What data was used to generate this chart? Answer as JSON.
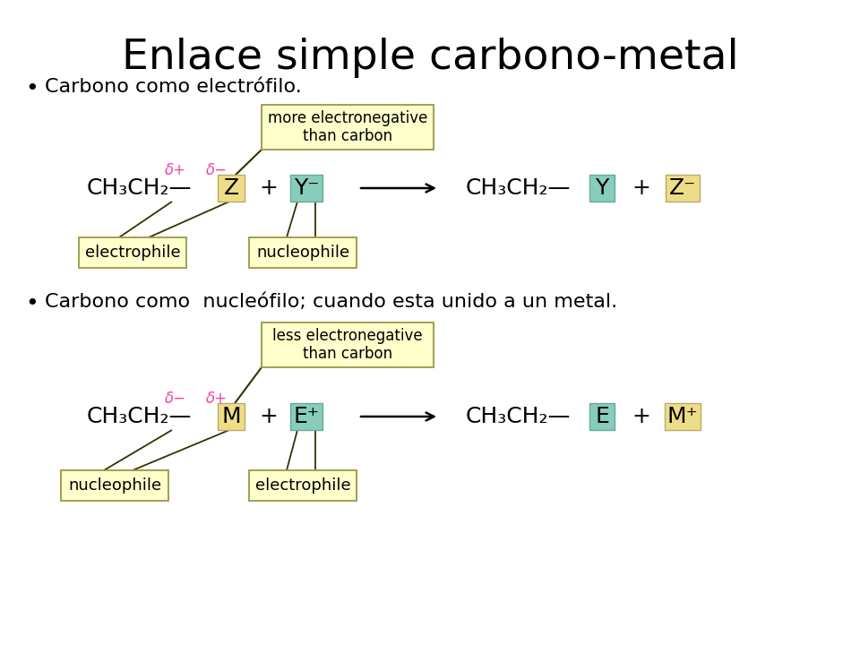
{
  "title": "Enlace simple carbono-metal",
  "title_fontsize": 34,
  "bg_color": "#ffffff",
  "bullet1": "Carbono como electrófilo.",
  "bullet2": "Carbono como  nucleófilo; cuando esta unido a un metal.",
  "bullet_fontsize": 16,
  "r1_box_text": "more electronegative\nthan carbon",
  "r2_box_text": "less electronegative\nthan carbon",
  "box_fill": "#ffffcc",
  "box_edge": "#999944",
  "z_fill": "#eedd88",
  "y_fill": "#88ccbb",
  "m_fill": "#eedd88",
  "e_fill": "#88ccbb",
  "delta_color": "#ee44aa",
  "label_fill": "#ffffcc",
  "label_edge": "#999944",
  "black": "#000000",
  "eq_fontsize": 18,
  "sub_fontsize": 11,
  "delta_fontsize": 12,
  "label_fontsize": 13
}
